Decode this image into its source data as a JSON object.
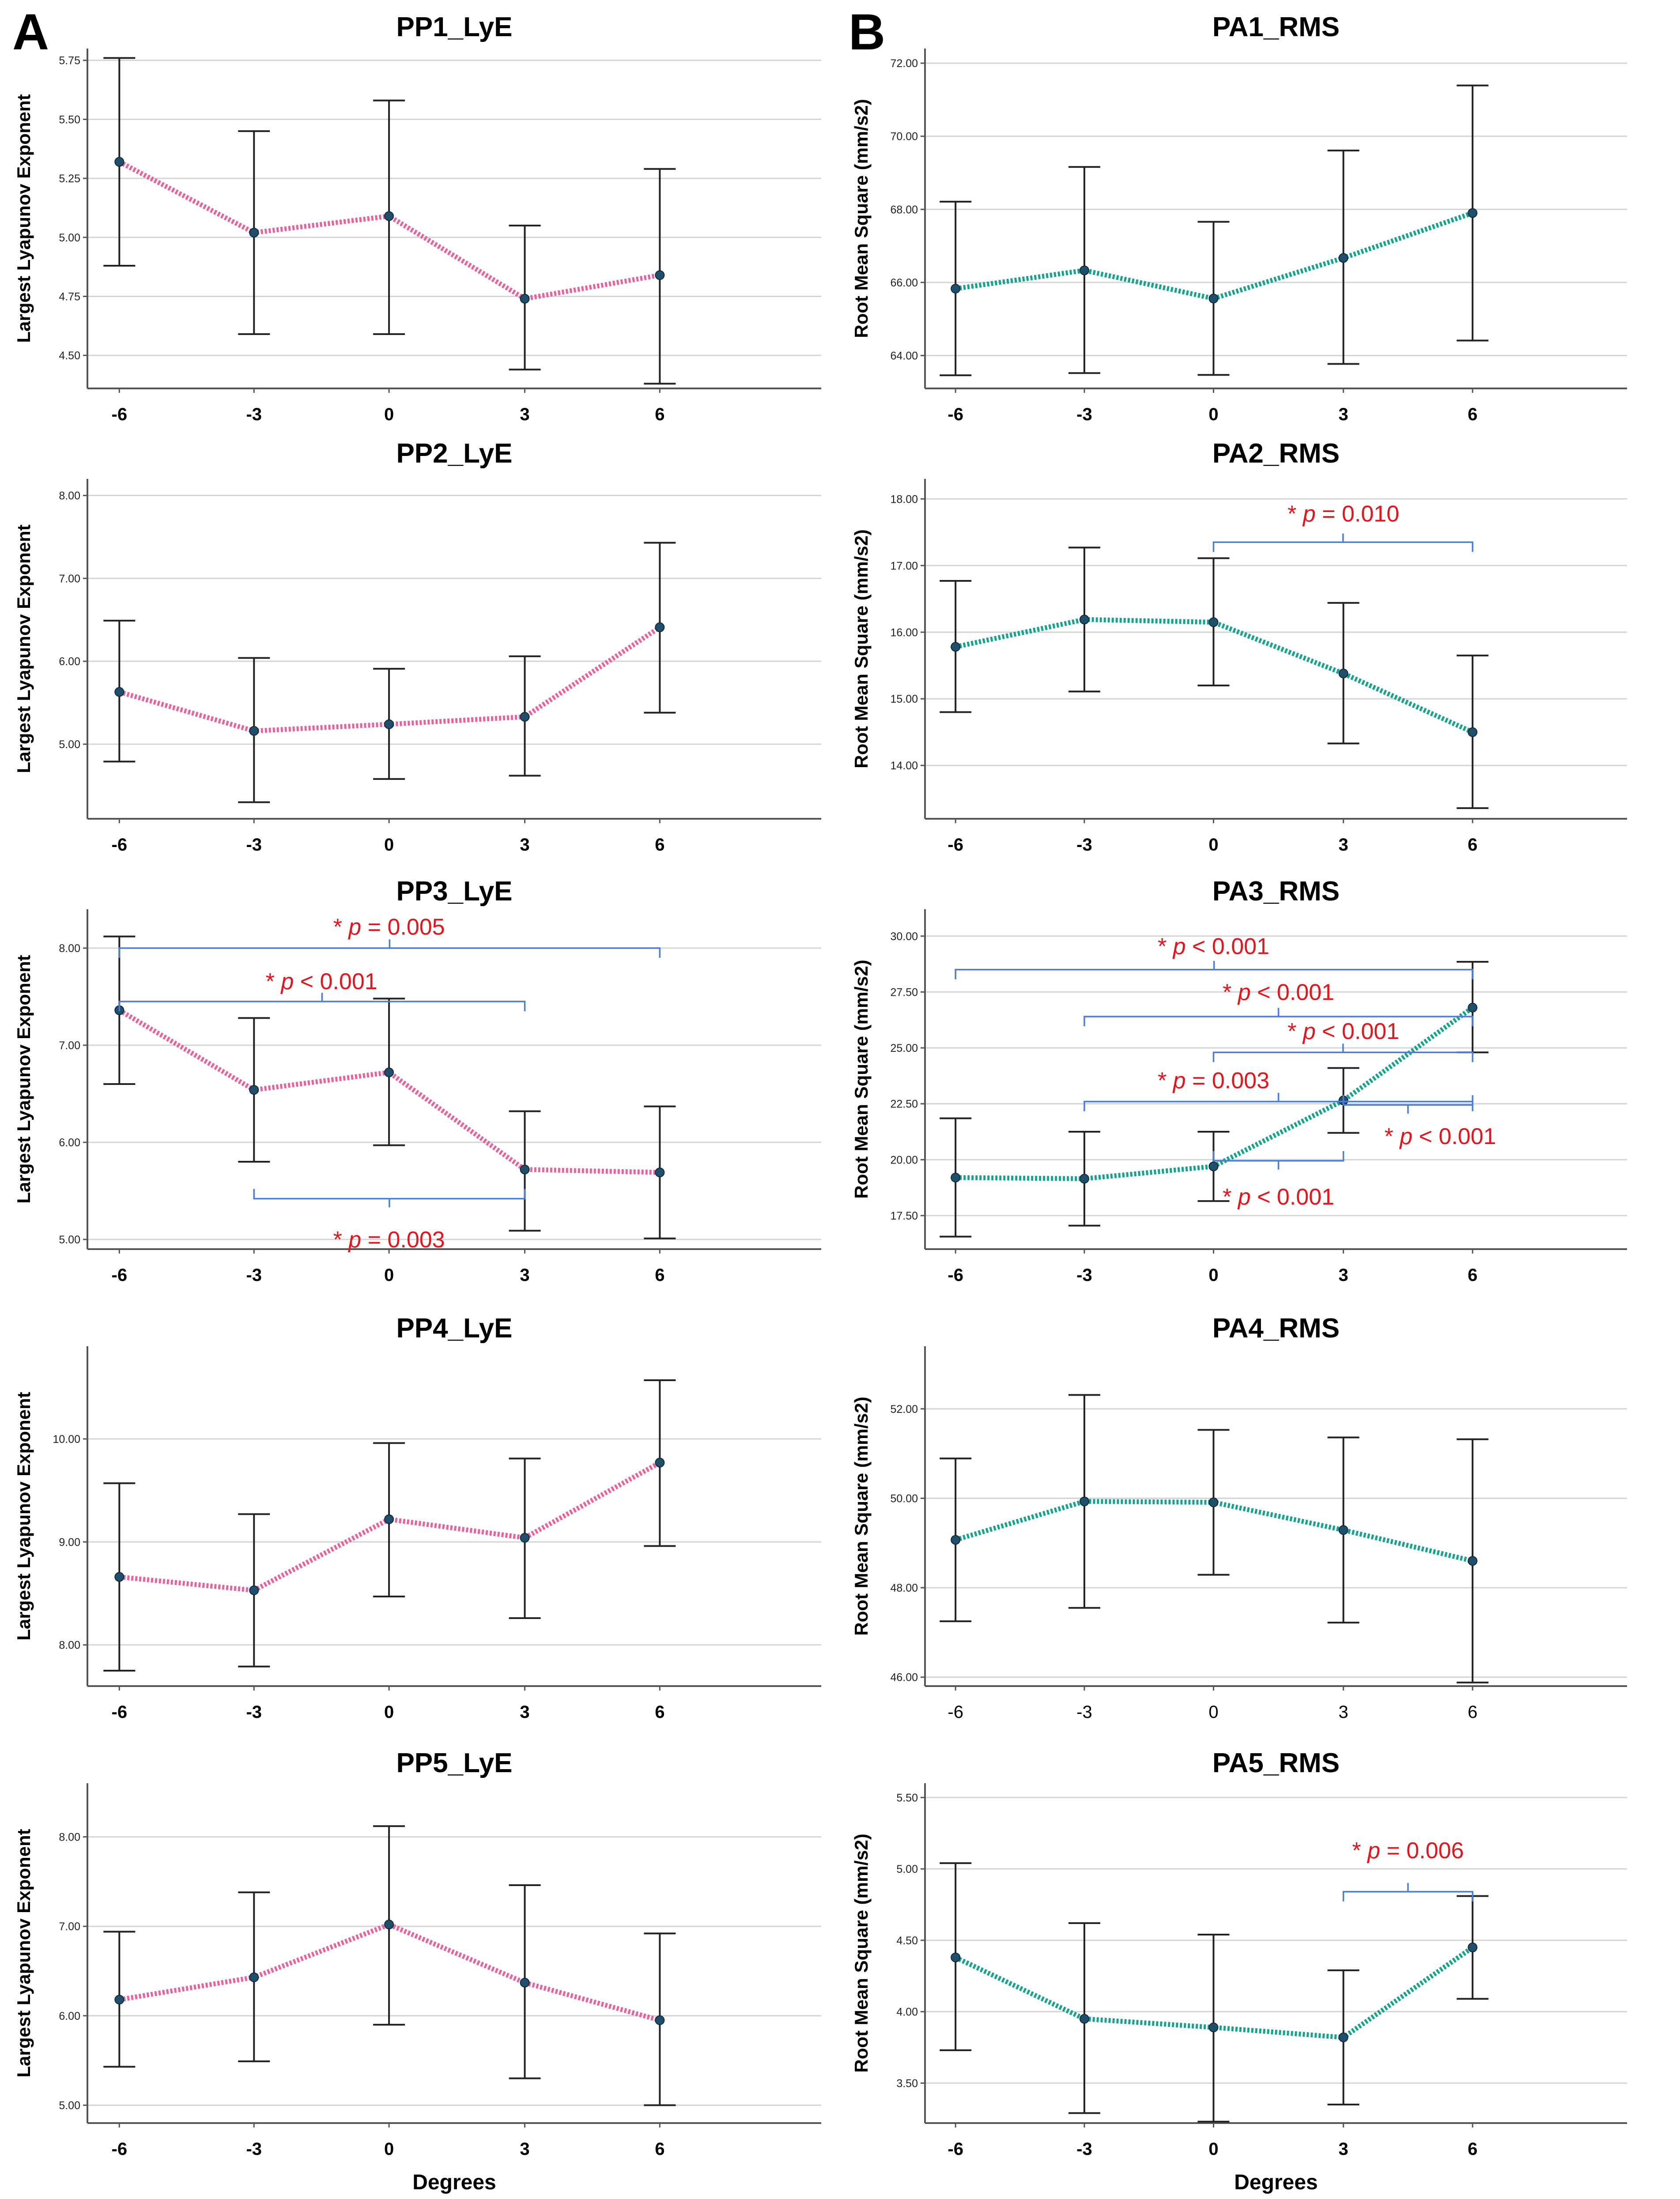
{
  "figure": {
    "panel_labels": [
      "A",
      "B"
    ],
    "x_axis_title": "Degrees",
    "colors": {
      "pink": "#e8639d",
      "teal": "#14a38f",
      "marker": "#1f4f6b",
      "bracket": "#4a7ed8",
      "pvalue": "#e8141b",
      "grid": "#d4d4d4",
      "axis": "#555555",
      "errorbar": "#222222"
    }
  },
  "chart_data": [
    {
      "id": "pp1",
      "type": "line",
      "title": "PP1_LyE",
      "xlabel": "",
      "ylabel": "Largest Lyapunov Exponent",
      "categories": [
        "-6",
        "-3",
        "0",
        "3",
        "6"
      ],
      "series_color": "pink",
      "means": [
        5.32,
        5.02,
        5.09,
        4.74,
        4.84
      ],
      "lower": [
        4.88,
        4.59,
        4.59,
        4.44,
        4.38
      ],
      "upper": [
        5.76,
        5.45,
        5.58,
        5.05,
        5.29
      ],
      "ylim": [
        4.36,
        5.8
      ],
      "ticks": [
        4.5,
        4.75,
        5.0,
        5.25,
        5.5,
        5.75
      ],
      "tick_labels": [
        "4.50",
        "4.75",
        "5.00",
        "5.25",
        "5.50",
        "5.75"
      ],
      "annotations": []
    },
    {
      "id": "pp2",
      "type": "line",
      "title": "PP2_LyE",
      "xlabel": "",
      "ylabel": "Largest Lyapunov Exponent",
      "categories": [
        "-6",
        "-3",
        "0",
        "3",
        "6"
      ],
      "series_color": "pink",
      "means": [
        5.63,
        5.16,
        5.24,
        5.33,
        6.41
      ],
      "lower": [
        4.79,
        4.3,
        4.58,
        4.62,
        5.38
      ],
      "upper": [
        6.49,
        6.04,
        5.91,
        6.06,
        7.43
      ],
      "ylim": [
        4.1,
        8.2
      ],
      "ticks": [
        5,
        6,
        7,
        8
      ],
      "tick_labels": [
        "5.00",
        "6.00",
        "7.00",
        "8.00"
      ],
      "annotations": []
    },
    {
      "id": "pp3",
      "type": "line",
      "title": "PP3_LyE",
      "xlabel": "",
      "ylabel": "Largest Lyapunov Exponent",
      "categories": [
        "-6",
        "-3",
        "0",
        "3",
        "6"
      ],
      "series_color": "pink",
      "means": [
        7.36,
        6.54,
        6.72,
        5.72,
        5.69
      ],
      "lower": [
        6.6,
        5.8,
        5.97,
        5.09,
        5.01
      ],
      "upper": [
        8.12,
        7.28,
        7.48,
        6.32,
        6.37
      ],
      "ylim": [
        4.9,
        8.4
      ],
      "ticks": [
        5,
        6,
        7,
        8
      ],
      "tick_labels": [
        "5.00",
        "6.00",
        "7.00",
        "8.00"
      ],
      "annotations": [
        {
          "from": 0,
          "to": 4,
          "bracket_y": 8.0,
          "text_y": 8.22,
          "orient": "down",
          "text_anchor": 2.0,
          "prefix": "* ",
          "p": "p",
          "rest": " = 0.005"
        },
        {
          "from": 0,
          "to": 3,
          "bracket_y": 7.45,
          "text_y": 7.66,
          "orient": "down",
          "text_anchor": 1.5,
          "prefix": "* ",
          "p": "p",
          "rest": " < 0.001"
        },
        {
          "from": 1,
          "to": 3,
          "bracket_y": 5.42,
          "text_y": 5.0,
          "orient": "up",
          "text_anchor": 2.0,
          "prefix": "* ",
          "p": "p",
          "rest": " = 0.003"
        }
      ]
    },
    {
      "id": "pp4",
      "type": "line",
      "title": "PP4_LyE",
      "xlabel": "",
      "ylabel": "Largest Lyapunov Exponent",
      "categories": [
        "-6",
        "-3",
        "0",
        "3",
        "6"
      ],
      "series_color": "pink",
      "means": [
        8.66,
        8.53,
        9.22,
        9.04,
        9.77
      ],
      "lower": [
        7.75,
        7.79,
        8.47,
        8.26,
        8.96
      ],
      "upper": [
        9.57,
        9.27,
        9.96,
        9.81,
        10.57
      ],
      "ylim": [
        7.6,
        10.9
      ],
      "ticks": [
        8,
        9,
        10
      ],
      "tick_labels": [
        "8.00",
        "9.00",
        "10.00"
      ],
      "annotations": []
    },
    {
      "id": "pp5",
      "type": "line",
      "title": "PP5_LyE",
      "xlabel": "Degrees",
      "ylabel": "Largest Lyapunov Exponent",
      "categories": [
        "-6",
        "-3",
        "0",
        "3",
        "6"
      ],
      "series_color": "pink",
      "means": [
        6.18,
        6.43,
        7.02,
        6.37,
        5.95
      ],
      "lower": [
        5.43,
        5.49,
        5.9,
        5.3,
        5.0
      ],
      "upper": [
        6.94,
        7.38,
        8.12,
        7.46,
        6.92
      ],
      "ylim": [
        4.8,
        8.6
      ],
      "ticks": [
        5,
        6,
        7,
        8
      ],
      "tick_labels": [
        "5.00",
        "6.00",
        "7.00",
        "8.00"
      ],
      "annotations": []
    },
    {
      "id": "pa1",
      "type": "line",
      "title": "PA1_RMS",
      "xlabel": "",
      "ylabel": "Root Mean Square (mm/s2)",
      "categories": [
        "-6",
        "-3",
        "0",
        "3",
        "6"
      ],
      "series_color": "teal",
      "means": [
        65.83,
        66.33,
        65.56,
        66.67,
        67.9
      ],
      "lower": [
        63.46,
        63.52,
        63.47,
        63.77,
        64.41
      ],
      "upper": [
        68.21,
        69.16,
        67.66,
        69.61,
        71.39
      ],
      "ylim": [
        63.1,
        72.4
      ],
      "ticks": [
        64,
        66,
        68,
        70,
        72
      ],
      "tick_labels": [
        "64.00",
        "66.00",
        "68.00",
        "70.00",
        "72.00"
      ],
      "annotations": []
    },
    {
      "id": "pa2",
      "type": "line",
      "title": "PA2_RMS",
      "xlabel": "",
      "ylabel": "Root Mean Square (mm/s2)",
      "categories": [
        "-6",
        "-3",
        "0",
        "3",
        "6"
      ],
      "series_color": "teal",
      "means": [
        15.78,
        16.19,
        16.15,
        15.38,
        14.5
      ],
      "lower": [
        14.8,
        15.11,
        15.2,
        14.33,
        13.36
      ],
      "upper": [
        16.77,
        17.27,
        17.11,
        16.44,
        15.65
      ],
      "ylim": [
        13.2,
        18.3
      ],
      "ticks": [
        14,
        15,
        16,
        17,
        18
      ],
      "tick_labels": [
        "14.00",
        "15.00",
        "16.00",
        "17.00",
        "18.00"
      ],
      "annotations": [
        {
          "from": 2,
          "to": 4,
          "bracket_y": 17.35,
          "text_y": 17.78,
          "orient": "down",
          "text_anchor": 3.0,
          "prefix": "* ",
          "p": "p",
          "rest": " = 0.010"
        }
      ]
    },
    {
      "id": "pa3",
      "type": "line",
      "title": "PA3_RMS",
      "xlabel": "",
      "ylabel": "Root Mean Square (mm/s2)",
      "categories": [
        "-6",
        "-3",
        "0",
        "3",
        "6"
      ],
      "series_color": "teal",
      "means": [
        19.2,
        19.15,
        19.7,
        22.65,
        26.8
      ],
      "lower": [
        16.56,
        17.05,
        18.15,
        21.2,
        24.8
      ],
      "upper": [
        21.85,
        21.25,
        21.25,
        24.1,
        28.85
      ],
      "ylim": [
        16.0,
        31.2
      ],
      "ticks": [
        17.5,
        20,
        22.5,
        25,
        27.5,
        30
      ],
      "tick_labels": [
        "17.50",
        "20.00",
        "22.50",
        "25.00",
        "27.50",
        "30.00"
      ],
      "annotations": [
        {
          "from": 0,
          "to": 4,
          "bracket_y": 28.5,
          "text_y": 29.55,
          "orient": "down",
          "text_anchor": 2.0,
          "prefix": "* ",
          "p": "p",
          "rest": " < 0.001"
        },
        {
          "from": 1,
          "to": 4,
          "bracket_y": 26.4,
          "text_y": 27.5,
          "orient": "down",
          "text_anchor": 2.5,
          "prefix": "* ",
          "p": "p",
          "rest": " < 0.001"
        },
        {
          "from": 2,
          "to": 4,
          "bracket_y": 24.8,
          "text_y": 25.75,
          "orient": "down",
          "text_anchor": 3.0,
          "prefix": "* ",
          "p": "p",
          "rest": " < 0.001"
        },
        {
          "from": 1,
          "to": 4,
          "bracket_y": 22.6,
          "text_y": 23.55,
          "orient": "down",
          "text_anchor": 2.0,
          "prefix": "* ",
          "p": "p",
          "rest": " = 0.003"
        },
        {
          "from": 3,
          "to": 4,
          "bracket_y": 22.45,
          "text_y": 21.05,
          "orient": "up",
          "text_anchor": 4.2,
          "prefix": "* ",
          "p": "p",
          "rest": " < 0.001"
        },
        {
          "from": 2,
          "to": 3,
          "bracket_y": 19.95,
          "text_y": 18.35,
          "orient": "up",
          "text_anchor": 2.5,
          "prefix": "* ",
          "p": "p",
          "rest": " < 0.001"
        }
      ]
    },
    {
      "id": "pa4",
      "type": "line",
      "title": "PA4_RMS",
      "xlabel": "",
      "ylabel": "Root Mean Square (mm/s2)",
      "categories": [
        "-6",
        "-3",
        "0",
        "3",
        "6"
      ],
      "series_color": "teal",
      "tick_weight": "normal",
      "means": [
        49.07,
        49.93,
        49.91,
        49.29,
        48.6
      ],
      "lower": [
        47.25,
        47.55,
        48.29,
        47.22,
        45.88
      ],
      "upper": [
        50.89,
        52.31,
        51.53,
        51.36,
        51.32
      ],
      "ylim": [
        45.8,
        53.4
      ],
      "ticks": [
        46,
        48,
        50,
        52
      ],
      "tick_labels": [
        "46.00",
        "48.00",
        "50.00",
        "52.00"
      ],
      "annotations": []
    },
    {
      "id": "pa5",
      "type": "line",
      "title": "PA5_RMS",
      "xlabel": "Degrees",
      "ylabel": "Root Mean Square (mm/s2)",
      "categories": [
        "-6",
        "-3",
        "0",
        "3",
        "6"
      ],
      "series_color": "teal",
      "means": [
        4.38,
        3.95,
        3.89,
        3.82,
        4.45
      ],
      "lower": [
        3.73,
        3.29,
        3.23,
        3.35,
        4.09
      ],
      "upper": [
        5.04,
        4.62,
        4.54,
        4.29,
        4.81
      ],
      "ylim": [
        3.22,
        5.6
      ],
      "ticks": [
        3.5,
        4,
        4.5,
        5,
        5.5
      ],
      "tick_labels": [
        "3.50",
        "4.00",
        "4.50",
        "5.00",
        "5.50"
      ],
      "annotations": [
        {
          "from": 3,
          "to": 4,
          "bracket_y": 4.84,
          "text_y": 5.13,
          "orient": "down",
          "text_anchor": 3.5,
          "prefix": "* ",
          "p": "p",
          "rest": " = 0.006"
        }
      ]
    }
  ]
}
